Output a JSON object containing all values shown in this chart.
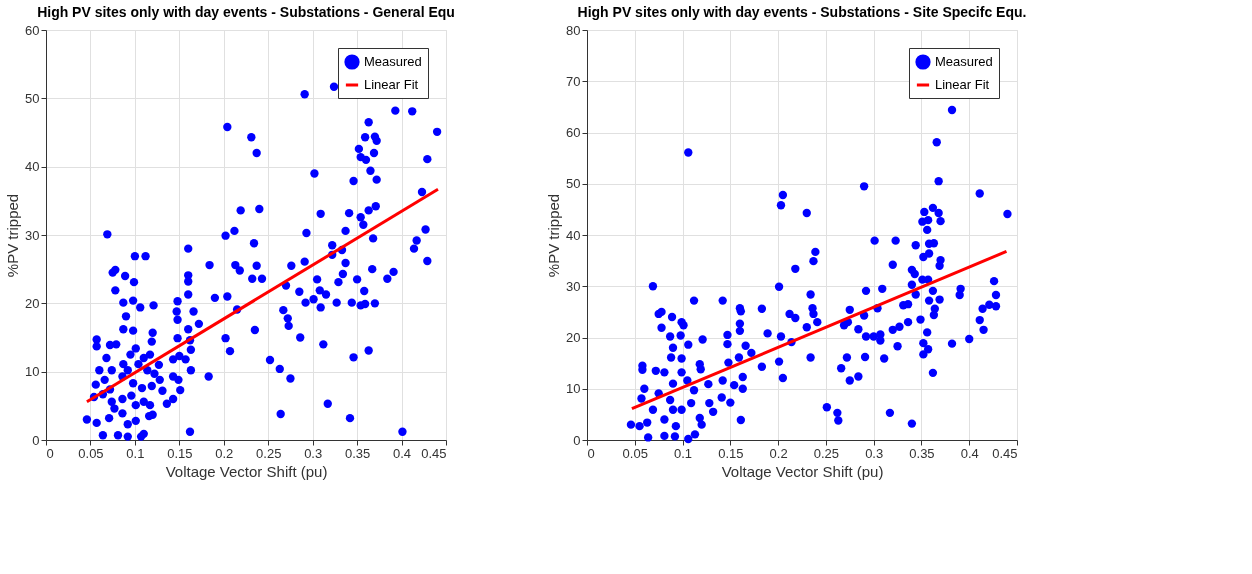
{
  "chart_data": [
    {
      "type": "scatter",
      "title": "High PV sites only with day events - Substations - General Equ",
      "xlabel": "Voltage Vector Shift (pu)",
      "ylabel": "%PV tripped",
      "xlim": [
        0,
        0.45
      ],
      "ylim": [
        0,
        60
      ],
      "xticks": [
        0,
        0.05,
        0.1,
        0.15,
        0.2,
        0.25,
        0.3,
        0.35,
        0.4,
        0.45
      ],
      "yticks": [
        0,
        10,
        20,
        30,
        40,
        50,
        60
      ],
      "grid": true,
      "legend": "top right",
      "series": [
        {
          "name": "Measured",
          "type": "scatter",
          "marker": "circle",
          "color": "#0000ff",
          "x": [
            0.069,
            0.204,
            0.231,
            0.237,
            0.291,
            0.324,
            0.393,
            0.412,
            0.363,
            0.44,
            0.429,
            0.359,
            0.37,
            0.372,
            0.352,
            0.354,
            0.36,
            0.369,
            0.365,
            0.302,
            0.346,
            0.372,
            0.423,
            0.219,
            0.24,
            0.309,
            0.341,
            0.363,
            0.371,
            0.202,
            0.212,
            0.293,
            0.337,
            0.354,
            0.357,
            0.368,
            0.427,
            0.417,
            0.414,
            0.234,
            0.322,
            0.322,
            0.16,
            0.184,
            0.213,
            0.218,
            0.237,
            0.232,
            0.243,
            0.276,
            0.291,
            0.333,
            0.337,
            0.334,
            0.329,
            0.305,
            0.35,
            0.367,
            0.384,
            0.391,
            0.429,
            0.27,
            0.285,
            0.308,
            0.358,
            0.315,
            0.292,
            0.301,
            0.309,
            0.327,
            0.344,
            0.354,
            0.359,
            0.37,
            0.19,
            0.204,
            0.215,
            0.267,
            0.272,
            0.273,
            0.286,
            0.235,
            0.202,
            0.207,
            0.252,
            0.263,
            0.275,
            0.312,
            0.346,
            0.363,
            0.317,
            0.264,
            0.342,
            0.401,
            0.162,
            0.183,
            0.16,
            0.16,
            0.16,
            0.148,
            0.147,
            0.148,
            0.166,
            0.172,
            0.16,
            0.148,
            0.162,
            0.163,
            0.157,
            0.143,
            0.15,
            0.163,
            0.127,
            0.143,
            0.149,
            0.151,
            0.143,
            0.136,
            0.131,
            0.121,
            0.106,
            0.098,
            0.087,
            0.09,
            0.099,
            0.089,
            0.075,
            0.078,
            0.1,
            0.112,
            0.078,
            0.087,
            0.098,
            0.12,
            0.057,
            0.057,
            0.072,
            0.079,
            0.119,
            0.101,
            0.06,
            0.056,
            0.054,
            0.046,
            0.057,
            0.064,
            0.081,
            0.092,
            0.107,
            0.11,
            0.092,
            0.071,
            0.077,
            0.086,
            0.116,
            0.12,
            0.117,
            0.101,
            0.096,
            0.108,
            0.119,
            0.072,
            0.064,
            0.066,
            0.074,
            0.087,
            0.092,
            0.104,
            0.114,
            0.086,
            0.098,
            0.068,
            0.095,
            0.11,
            0.117,
            0.074,
            0.11,
            0.086,
            0.101,
            0.128,
            0.122
          ],
          "values": [
            30.1,
            45.8,
            44.3,
            42.0,
            50.6,
            51.7,
            48.2,
            48.1,
            46.5,
            45.1,
            41.1,
            44.3,
            44.4,
            43.8,
            42.6,
            41.4,
            41.0,
            42.0,
            39.4,
            39.0,
            37.9,
            38.1,
            36.3,
            33.6,
            33.8,
            33.1,
            33.2,
            33.6,
            34.2,
            29.9,
            30.6,
            30.3,
            30.6,
            32.6,
            31.5,
            29.5,
            30.8,
            29.2,
            28.0,
            28.8,
            28.5,
            27.1,
            28.0,
            25.6,
            25.6,
            24.8,
            25.5,
            23.6,
            23.6,
            25.5,
            26.1,
            27.8,
            25.9,
            24.3,
            23.1,
            23.5,
            23.5,
            25.0,
            23.6,
            24.6,
            26.2,
            22.6,
            21.7,
            21.9,
            21.8,
            21.3,
            20.1,
            20.6,
            19.4,
            20.1,
            20.1,
            19.7,
            19.9,
            20.0,
            20.8,
            21.0,
            19.1,
            19.0,
            17.8,
            16.7,
            15.0,
            16.1,
            14.9,
            13.0,
            11.7,
            10.4,
            9.0,
            14.0,
            12.1,
            13.1,
            5.3,
            3.8,
            3.2,
            1.2,
            1.2,
            9.3,
            24.1,
            23.2,
            21.3,
            20.3,
            18.8,
            17.6,
            18.8,
            17.0,
            16.2,
            14.9,
            14.6,
            13.2,
            11.8,
            11.8,
            12.3,
            10.2,
            11.0,
            9.3,
            8.8,
            7.3,
            6.0,
            5.3,
            7.2,
            19.7,
            19.4,
            20.4,
            20.1,
            18.1,
            23.1,
            24.0,
            24.5,
            24.9,
            26.9,
            26.9,
            21.9,
            16.2,
            16.0,
            15.7,
            14.7,
            13.7,
            13.9,
            14.0,
            14.4,
            13.4,
            10.2,
            8.1,
            6.3,
            3.0,
            2.5,
            0.7,
            0.7,
            0.5,
            0.5,
            0.9,
            2.3,
            3.2,
            4.6,
            3.9,
            3.5,
            3.7,
            5.1,
            5.1,
            6.5,
            7.6,
            7.9,
            7.4,
            6.7,
            8.8,
            10.2,
            11.1,
            10.2,
            11.1,
            10.2,
            9.3,
            8.3,
            12.0,
            12.5,
            12.0,
            12.5,
            5.6,
            5.6,
            6.0,
            2.8,
            8.8,
            9.7
          ]
        },
        {
          "name": "Linear Fit",
          "type": "line",
          "line_style": "solid",
          "marker": "none",
          "color": "#ff0000",
          "x": [
            0.046,
            0.441
          ],
          "values": [
            5.6,
            36.7
          ]
        }
      ]
    },
    {
      "type": "scatter",
      "title": "High PV sites only with day events - Substations - Site Specifc Equ.",
      "xlabel": "Voltage Vector Shift (pu)",
      "ylabel": "%PV tripped",
      "xlim": [
        0,
        0.45
      ],
      "ylim": [
        0,
        80
      ],
      "xticks": [
        0,
        0.05,
        0.1,
        0.15,
        0.2,
        0.25,
        0.3,
        0.35,
        0.4,
        0.45
      ],
      "yticks": [
        0,
        10,
        20,
        30,
        40,
        50,
        60,
        70,
        80
      ],
      "grid": true,
      "legend": "top right",
      "series": [
        {
          "name": "Measured",
          "type": "scatter",
          "marker": "circle",
          "color": "#0000ff",
          "x": [
            0.106,
            0.382,
            0.366,
            0.368,
            0.29,
            0.411,
            0.205,
            0.203,
            0.23,
            0.44,
            0.353,
            0.362,
            0.368,
            0.351,
            0.357,
            0.37,
            0.356,
            0.301,
            0.323,
            0.344,
            0.358,
            0.363,
            0.239,
            0.237,
            0.352,
            0.358,
            0.37,
            0.369,
            0.218,
            0.32,
            0.34,
            0.343,
            0.069,
            0.201,
            0.234,
            0.292,
            0.309,
            0.34,
            0.351,
            0.357,
            0.344,
            0.362,
            0.391,
            0.39,
            0.426,
            0.428,
            0.112,
            0.142,
            0.16,
            0.161,
            0.183,
            0.212,
            0.218,
            0.236,
            0.237,
            0.241,
            0.275,
            0.29,
            0.304,
            0.331,
            0.336,
            0.358,
            0.369,
            0.364,
            0.363,
            0.414,
            0.421,
            0.428,
            0.411,
            0.415,
            0.16,
            0.16,
            0.269,
            0.273,
            0.23,
            0.284,
            0.32,
            0.327,
            0.336,
            0.349,
            0.356,
            0.075,
            0.078,
            0.089,
            0.099,
            0.101,
            0.078,
            0.087,
            0.098,
            0.121,
            0.106,
            0.09,
            0.088,
            0.099,
            0.147,
            0.147,
            0.166,
            0.172,
            0.189,
            0.203,
            0.214,
            0.292,
            0.3,
            0.307,
            0.307,
            0.325,
            0.352,
            0.382,
            0.4,
            0.352,
            0.357,
            0.291,
            0.311,
            0.272,
            0.234,
            0.183,
            0.201,
            0.205,
            0.266,
            0.275,
            0.284,
            0.362,
            0.251,
            0.262,
            0.263,
            0.317,
            0.34,
            0.161,
            0.058,
            0.058,
            0.06,
            0.057,
            0.046,
            0.055,
            0.064,
            0.081,
            0.092,
            0.106,
            0.113,
            0.118,
            0.12,
            0.132,
            0.128,
            0.15,
            0.141,
            0.127,
            0.142,
            0.148,
            0.159,
            0.163,
            0.163,
            0.154,
            0.118,
            0.119,
            0.099,
            0.081,
            0.072,
            0.075,
            0.09,
            0.105,
            0.112,
            0.069,
            0.081,
            0.093,
            0.099,
            0.109,
            0.087,
            0.063,
            0.09
          ],
          "values": [
            56.1,
            64.4,
            58.1,
            50.5,
            49.5,
            48.1,
            47.8,
            45.8,
            44.3,
            44.1,
            44.5,
            45.3,
            44.3,
            42.6,
            42.9,
            42.7,
            41.0,
            38.9,
            38.9,
            38.0,
            38.3,
            38.4,
            36.7,
            34.9,
            35.7,
            36.4,
            35.1,
            34.0,
            33.4,
            34.2,
            33.2,
            32.4,
            30.0,
            29.9,
            28.4,
            29.1,
            29.5,
            30.3,
            31.3,
            31.3,
            28.4,
            29.1,
            29.5,
            28.3,
            31.0,
            28.3,
            27.2,
            27.2,
            25.7,
            25.1,
            25.6,
            24.6,
            23.8,
            25.7,
            24.6,
            23.0,
            25.4,
            24.3,
            25.7,
            26.3,
            26.5,
            27.2,
            27.4,
            25.6,
            24.4,
            25.6,
            26.4,
            26.1,
            23.4,
            21.5,
            22.7,
            21.3,
            22.4,
            23.0,
            22.0,
            21.6,
            21.5,
            22.1,
            23.0,
            23.5,
            21.0,
            24.6,
            25.0,
            24.0,
            23.0,
            22.4,
            21.9,
            20.2,
            20.4,
            19.6,
            18.6,
            18.0,
            16.1,
            15.9,
            20.5,
            18.7,
            18.4,
            17.0,
            20.8,
            20.2,
            19.1,
            20.2,
            20.2,
            20.6,
            19.4,
            18.3,
            18.9,
            18.8,
            19.7,
            16.7,
            17.7,
            16.2,
            15.9,
            16.1,
            16.1,
            14.3,
            15.3,
            12.1,
            14.0,
            11.6,
            12.4,
            13.1,
            6.4,
            5.3,
            3.8,
            5.3,
            3.2,
            3.9,
            14.5,
            13.7,
            10.0,
            8.1,
            3.0,
            2.7,
            0.5,
            0.8,
            0.7,
            0.2,
            1.1,
            4.3,
            3.0,
            5.5,
            7.2,
            7.3,
            8.3,
            10.9,
            11.6,
            15.1,
            16.1,
            12.3,
            10.0,
            10.7,
            14.8,
            13.8,
            13.2,
            13.2,
            13.5,
            9.1,
            11.0,
            11.6,
            9.7,
            5.9,
            4.0,
            2.7,
            5.9,
            7.2,
            7.8,
            3.4,
            5.9
          ]
        },
        {
          "name": "Linear Fit",
          "type": "line",
          "line_style": "solid",
          "marker": "none",
          "color": "#ff0000",
          "x": [
            0.047,
            0.439
          ],
          "values": [
            6.1,
            36.8
          ]
        }
      ]
    }
  ]
}
